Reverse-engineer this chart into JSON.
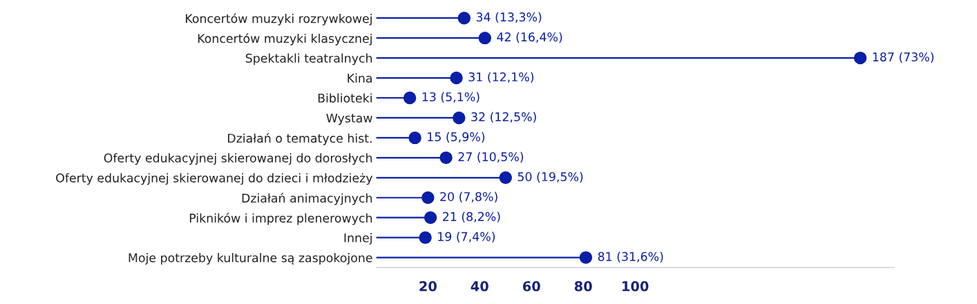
{
  "chart_data": {
    "type": "lollipop",
    "orientation": "horizontal",
    "categories": [
      "Koncertów muzyki rozrywkowej",
      "Koncertów muzyki klasycznej",
      "Spektakli teatralnych",
      "Kina",
      "Biblioteki",
      "Wystaw",
      "Działań o tematyce hist.",
      "Oferty edukacyjnej skierowanej do dorosłych",
      "Oferty edukacyjnej skierowanej do dzieci i młodzieży",
      "Działań animacyjnych",
      "Pikników i imprez plenerowych",
      "Innej",
      "Moje potrzeby kulturalne są zaspokojone"
    ],
    "values": [
      34,
      42,
      187,
      31,
      13,
      32,
      15,
      27,
      50,
      20,
      21,
      19,
      81
    ],
    "value_labels": [
      "34 (13,3%)",
      "42 (16,4%)",
      "187 (73%)",
      "31 (12,1%)",
      "13 (5,1%)",
      "32 (12,5%)",
      "15 (5,9%)",
      "27 (10,5%)",
      "50 (19,5%)",
      "20 (7,8%)",
      "21 (8,2%)",
      "19 (7,4%)",
      "81 (31,6%)"
    ],
    "color": "#0a1fa8",
    "marker": "circle",
    "xlim": [
      0,
      200
    ],
    "xticks": [
      20,
      40,
      60,
      80,
      100
    ]
  }
}
